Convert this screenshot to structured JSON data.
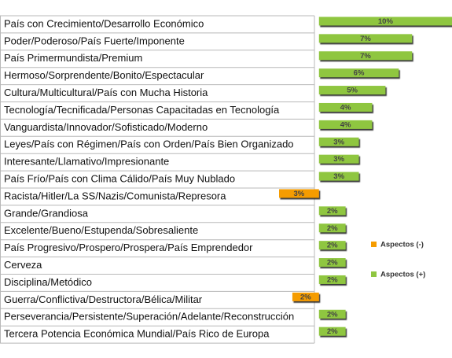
{
  "chart_data": {
    "type": "bar",
    "orientation": "horizontal",
    "categories": [
      "País con Crecimiento/Desarrollo  Económico",
      "Poder/Poderoso/País Fuerte/Imponente",
      "País Primermundista/Premium",
      "Hermoso/Sorprendente/Bonito/Espectacular",
      "Cultura/Multicultural/País con Mucha Historia",
      "Tecnología/Tecnificada/Personas  Capacitadas en Tecnología",
      "Vanguardista/Innovador/Sofisticado/Moderno",
      "Leyes/País con Régimen/País con Orden/País Bien Organizado",
      "Interesante/Llamativo/Impresionante",
      "País Frío/País con Clima Cálido/País Muy Nublado",
      "Racista/Hitler/La SS/Nazis/Comunista/Represora",
      "Grande/Grandiosa",
      "Excelente/Bueno/Estupenda/Sobresaliente",
      "País Progresivo/Prospero/Prospera/País  Emprendedor",
      "Cerveza",
      "Disciplina/Metódico",
      "Guerra/Conflictiva/Destructora/Bélica/Militar",
      "Perseverancia/Persistente/Superación/Adelante/Reconstrucción",
      "Tercera Potencia Económica Mundial/País Rico de Europa"
    ],
    "series": [
      {
        "name": "Aspectos (-)",
        "color": "#f59c00",
        "values": [
          null,
          null,
          null,
          null,
          null,
          null,
          null,
          null,
          null,
          null,
          -3,
          null,
          null,
          null,
          null,
          null,
          -2,
          null,
          null
        ],
        "value_labels": [
          null,
          null,
          null,
          null,
          null,
          null,
          null,
          null,
          null,
          null,
          "3%",
          null,
          null,
          null,
          null,
          null,
          "2%",
          null,
          null
        ]
      },
      {
        "name": "Aspectos (+)",
        "color": "#8fc641",
        "values": [
          10,
          7,
          7,
          6,
          5,
          4,
          4,
          3,
          3,
          3,
          null,
          2,
          2,
          2,
          2,
          2,
          null,
          2,
          2
        ],
        "value_labels": [
          "10%",
          "7%",
          "7%",
          "6%",
          "5%",
          "4%",
          "4%",
          "3%",
          "3%",
          "3%",
          null,
          "2%",
          "2%",
          "2%",
          "2%",
          "2%",
          null,
          "2%",
          "2%"
        ]
      }
    ],
    "xlim": [
      -3,
      10
    ],
    "legend": "right"
  }
}
